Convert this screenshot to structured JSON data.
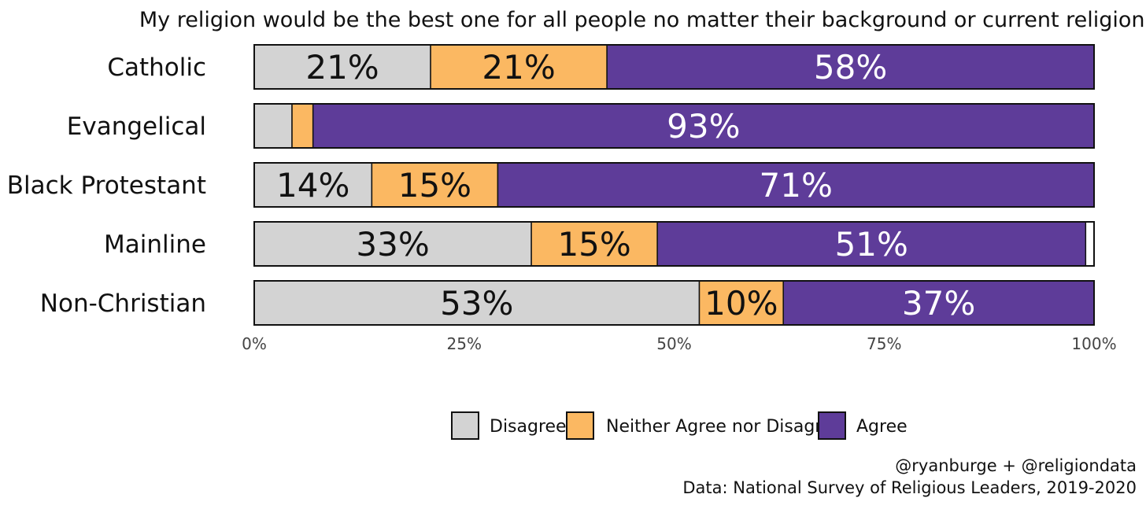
{
  "chart_data": {
    "type": "bar",
    "orientation": "horizontal",
    "stacked": true,
    "title": "My religion would be the best one for all people no matter their background or current religion.",
    "categories": [
      "Catholic",
      "Evangelical",
      "Black Protestant",
      "Mainline",
      "Non-Christian"
    ],
    "series": [
      {
        "name": "Disagree",
        "color": "#d3d3d3",
        "label_color": "#111111",
        "values": [
          21,
          4.5,
          14,
          33,
          53
        ],
        "labels": [
          "21%",
          "",
          "14%",
          "33%",
          "53%"
        ]
      },
      {
        "name": "Neither Agree nor Disagree",
        "color": "#fbb862",
        "label_color": "#111111",
        "values": [
          21,
          2.5,
          15,
          15,
          10
        ],
        "labels": [
          "21%",
          "",
          "15%",
          "15%",
          "10%"
        ]
      },
      {
        "name": "Agree",
        "color": "#5e3c99",
        "label_color": "#ffffff",
        "values": [
          58,
          93,
          71,
          51,
          37
        ],
        "labels": [
          "58%",
          "93%",
          "71%",
          "51%",
          "37%"
        ]
      }
    ],
    "xlim": [
      0,
      100
    ],
    "xticks": [
      "0%",
      "25%",
      "50%",
      "75%",
      "100%"
    ],
    "xtick_values": [
      0,
      25,
      50,
      75,
      100
    ],
    "legend_position": "bottom",
    "grid": false
  },
  "caption": {
    "handle": "@ryanburge + @religiondata",
    "source": "Data: National Survey of Religious Leaders, 2019-2020"
  }
}
